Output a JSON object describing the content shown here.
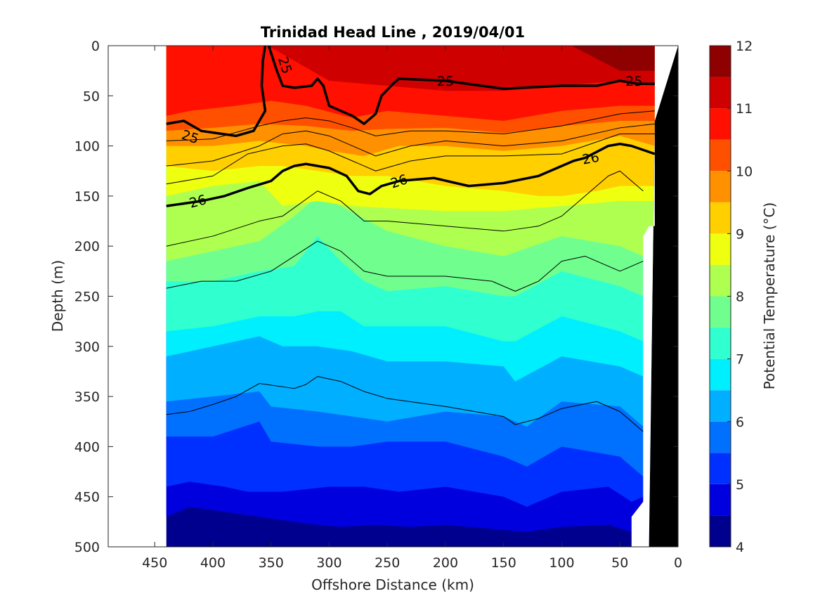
{
  "chart_data": {
    "type": "heatmap",
    "title": "Trinidad Head Line , 2019/04/01",
    "xlabel": "Offshore Distance (km)",
    "ylabel": "Depth (m)",
    "xlim": [
      490,
      0
    ],
    "ylim": [
      0,
      500
    ],
    "x_reversed": true,
    "y_reversed": true,
    "x_ticks": [
      450,
      400,
      350,
      300,
      250,
      200,
      150,
      100,
      50,
      0
    ],
    "y_ticks": [
      0,
      50,
      100,
      150,
      200,
      250,
      300,
      350,
      400,
      450,
      500
    ],
    "colorbar": {
      "label": "Potential Temperature (°C)",
      "range": [
        4,
        12
      ],
      "ticks": [
        4,
        5,
        6,
        7,
        8,
        9,
        10,
        11,
        12
      ],
      "levels": [
        4,
        4.5,
        5,
        5.5,
        6,
        6.5,
        7,
        7.5,
        8,
        8.5,
        9,
        9.5,
        10,
        10.5,
        11,
        11.5,
        12
      ],
      "colors": [
        "#00008F",
        "#0000DF",
        "#0030FF",
        "#0070FF",
        "#00AFFF",
        "#00EFFF",
        "#30FFCF",
        "#70FF8F",
        "#AFFF50",
        "#EFFF10",
        "#FFCF00",
        "#FF9000",
        "#FF5000",
        "#FF1000",
        "#CF0000",
        "#8F0000"
      ]
    },
    "section_range_km": [
      440,
      20
    ],
    "temperature_band_bottoms": [
      {
        "temp_min": 11.5,
        "x": [
          440,
          360,
          300,
          250,
          200,
          150,
          100,
          50,
          20
        ],
        "depth": [
          -5,
          -5,
          -5,
          -5,
          -5,
          -5,
          -5,
          25,
          25
        ]
      },
      {
        "temp_min": 11,
        "x": [
          440,
          360,
          300,
          250,
          200,
          150,
          100,
          50,
          20
        ],
        "depth": [
          -5,
          -5,
          35,
          40,
          45,
          45,
          40,
          35,
          40
        ]
      },
      {
        "temp_min": 10.5,
        "x": [
          440,
          420,
          380,
          350,
          320,
          280,
          250,
          200,
          150,
          100,
          50,
          20
        ],
        "depth": [
          70,
          65,
          60,
          55,
          60,
          72,
          65,
          70,
          75,
          65,
          60,
          60
        ]
      },
      {
        "temp_min": 10,
        "x": [
          440,
          400,
          360,
          320,
          280,
          250,
          200,
          150,
          100,
          50,
          20
        ],
        "depth": [
          85,
          82,
          78,
          80,
          85,
          83,
          82,
          87,
          80,
          75,
          75
        ]
      },
      {
        "temp_min": 9.5,
        "x": [
          440,
          400,
          360,
          320,
          300,
          270,
          240,
          200,
          150,
          100,
          50,
          20
        ],
        "depth": [
          100,
          100,
          95,
          100,
          105,
          110,
          100,
          100,
          105,
          100,
          90,
          100
        ]
      },
      {
        "temp_min": 9,
        "x": [
          440,
          400,
          360,
          340,
          310,
          280,
          250,
          200,
          150,
          120,
          100,
          70,
          50,
          20
        ],
        "depth": [
          120,
          125,
          120,
          120,
          125,
          130,
          130,
          140,
          145,
          150,
          150,
          145,
          140,
          140
        ]
      },
      {
        "temp_min": 8.5,
        "x": [
          440,
          400,
          360,
          340,
          310,
          280,
          250,
          200,
          150,
          100,
          50,
          30
        ],
        "depth": [
          150,
          140,
          135,
          160,
          155,
          160,
          162,
          165,
          165,
          160,
          155,
          155
        ]
      },
      {
        "temp_min": 8,
        "x": [
          440,
          400,
          360,
          330,
          310,
          290,
          250,
          200,
          150,
          100,
          50,
          30
        ],
        "depth": [
          215,
          205,
          195,
          170,
          150,
          160,
          185,
          200,
          210,
          190,
          200,
          210
        ]
      },
      {
        "temp_min": 7.5,
        "x": [
          440,
          400,
          360,
          330,
          310,
          290,
          270,
          250,
          200,
          150,
          140,
          100,
          50,
          30
        ],
        "depth": [
          235,
          235,
          225,
          220,
          190,
          215,
          235,
          245,
          240,
          250,
          250,
          225,
          240,
          250
        ]
      },
      {
        "temp_min": 7,
        "x": [
          440,
          400,
          360,
          330,
          310,
          290,
          270,
          250,
          200,
          150,
          140,
          100,
          50,
          30
        ],
        "depth": [
          285,
          280,
          270,
          270,
          265,
          265,
          280,
          280,
          280,
          295,
          295,
          270,
          285,
          295
        ]
      },
      {
        "temp_min": 6.5,
        "x": [
          440,
          400,
          360,
          340,
          310,
          280,
          250,
          200,
          150,
          140,
          100,
          50,
          30
        ],
        "depth": [
          310,
          300,
          290,
          300,
          300,
          305,
          315,
          315,
          320,
          335,
          310,
          320,
          330
        ]
      },
      {
        "temp_min": 6,
        "x": [
          440,
          400,
          360,
          350,
          310,
          280,
          250,
          200,
          150,
          130,
          100,
          50,
          30
        ],
        "depth": [
          355,
          350,
          345,
          360,
          365,
          370,
          375,
          365,
          370,
          380,
          355,
          360,
          380
        ]
      },
      {
        "temp_min": 5.5,
        "x": [
          440,
          400,
          360,
          350,
          310,
          280,
          250,
          200,
          150,
          130,
          100,
          50,
          30
        ],
        "depth": [
          390,
          390,
          375,
          395,
          400,
          400,
          395,
          395,
          410,
          420,
          400,
          410,
          430
        ]
      },
      {
        "temp_min": 5,
        "x": [
          440,
          420,
          390,
          370,
          340,
          300,
          270,
          240,
          200,
          150,
          130,
          100,
          60,
          40,
          30
        ],
        "depth": [
          440,
          435,
          440,
          445,
          445,
          440,
          440,
          445,
          440,
          450,
          460,
          445,
          440,
          455,
          450
        ]
      },
      {
        "temp_min": 4.5,
        "x": [
          440,
          420,
          390,
          360,
          330,
          310,
          290,
          260,
          230,
          200,
          160,
          130,
          100,
          60,
          40,
          30
        ],
        "depth": [
          470,
          460,
          465,
          470,
          475,
          478,
          480,
          478,
          480,
          478,
          482,
          485,
          480,
          478,
          485,
          490
        ]
      },
      {
        "temp_min": 4,
        "x": [
          440,
          20
        ],
        "depth": [
          505,
          505
        ]
      }
    ],
    "contours": [
      {
        "level": 25,
        "thick": true,
        "label": "25",
        "x": [
          440,
          425,
          410,
          380,
          365,
          355,
          358,
          357,
          355
        ],
        "depth": [
          78,
          75,
          85,
          90,
          85,
          65,
          40,
          15,
          0
        ]
      },
      {
        "level": 25,
        "thick": true,
        "label": "25",
        "x": [
          352,
          345,
          340,
          330,
          315,
          310,
          305,
          300,
          280,
          270,
          260,
          255,
          245,
          240,
          200,
          150,
          100,
          70,
          50,
          35,
          20
        ],
        "depth": [
          0,
          25,
          40,
          42,
          40,
          33,
          40,
          60,
          70,
          78,
          68,
          50,
          38,
          33,
          35,
          43,
          40,
          40,
          35,
          38,
          38
        ]
      },
      {
        "level": 26,
        "thick": true,
        "label": "26",
        "x": [
          440,
          410,
          390,
          370,
          350,
          340,
          330,
          320,
          300,
          285,
          275,
          265,
          255,
          240,
          210,
          180,
          150,
          120,
          90,
          80,
          60,
          50,
          40,
          20
        ],
        "depth": [
          160,
          155,
          150,
          142,
          135,
          125,
          120,
          118,
          122,
          130,
          145,
          148,
          140,
          135,
          132,
          140,
          137,
          130,
          115,
          112,
          100,
          98,
          100,
          108
        ]
      },
      {
        "level": 25.25,
        "thick": false,
        "x": [
          440,
          400,
          360,
          340,
          320,
          300,
          280,
          260,
          230,
          200,
          150,
          100,
          50,
          20
        ],
        "depth": [
          95,
          93,
          80,
          75,
          72,
          75,
          82,
          90,
          85,
          85,
          88,
          80,
          68,
          65
        ]
      },
      {
        "level": 25.5,
        "thick": false,
        "x": [
          440,
          400,
          360,
          340,
          320,
          300,
          280,
          260,
          230,
          200,
          150,
          100,
          50,
          20
        ],
        "depth": [
          120,
          115,
          100,
          88,
          85,
          90,
          100,
          110,
          100,
          95,
          100,
          95,
          82,
          78
        ]
      },
      {
        "level": 25.75,
        "thick": false,
        "x": [
          440,
          400,
          370,
          340,
          320,
          300,
          280,
          260,
          230,
          200,
          150,
          100,
          50,
          20
        ],
        "depth": [
          138,
          130,
          108,
          100,
          98,
          105,
          115,
          125,
          115,
          110,
          110,
          108,
          88,
          88
        ]
      },
      {
        "level": 26.25,
        "thick": false,
        "x": [
          440,
          400,
          360,
          340,
          310,
          290,
          270,
          250,
          200,
          150,
          120,
          100,
          60,
          50,
          30
        ],
        "depth": [
          200,
          190,
          175,
          170,
          145,
          155,
          175,
          175,
          180,
          185,
          180,
          170,
          130,
          125,
          145
        ]
      },
      {
        "level": 26.5,
        "thick": false,
        "x": [
          440,
          410,
          380,
          350,
          330,
          310,
          290,
          270,
          250,
          200,
          160,
          140,
          120,
          100,
          80,
          50,
          30
        ],
        "depth": [
          242,
          235,
          235,
          225,
          210,
          195,
          205,
          225,
          230,
          230,
          235,
          245,
          235,
          215,
          210,
          225,
          215
        ]
      },
      {
        "level": 26.75,
        "thick": false,
        "x": [
          440,
          420,
          400,
          380,
          360,
          330,
          320,
          310,
          290,
          270,
          250,
          200,
          150,
          140,
          120,
          100,
          70,
          50,
          30
        ],
        "depth": [
          368,
          365,
          358,
          350,
          337,
          342,
          338,
          330,
          335,
          345,
          352,
          360,
          370,
          378,
          372,
          362,
          355,
          365,
          385
        ]
      }
    ]
  }
}
